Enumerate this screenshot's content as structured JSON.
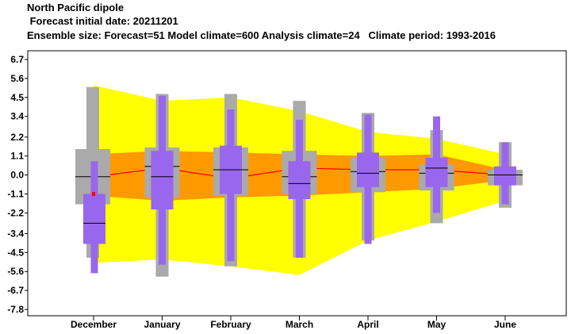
{
  "header": {
    "title": "North Pacific dipole",
    "forecast_date": " Forecast initial date: 20211201",
    "ensemble": "Ensemble size: Forecast=51 Model climate=600 Analysis climate=24   Climate period: 1993-2016"
  },
  "colors": {
    "climate_outer": "#ffff00",
    "climate_inner": "#ff9900",
    "climate_median": "#ff0000",
    "model_climate_box": "#aaaaaa",
    "forecast_box": "#9966ee",
    "median_line": "#000000",
    "analysis_marker": "#ff0000"
  },
  "chart_data": {
    "type": "box",
    "categories": [
      "December",
      "January",
      "February",
      "March",
      "April",
      "May",
      "June"
    ],
    "y_ticks": [
      "6.7",
      "5.6",
      "4.5",
      "3.4",
      "2.2",
      "1.1",
      "0.0",
      "-1.1",
      "-2.2",
      "-3.4",
      "-4.5",
      "-5.6",
      "-6.7",
      "-7.8"
    ],
    "ylim": [
      -7.8,
      6.7
    ],
    "analysis_climate": {
      "outer_upper": [
        5.2,
        4.3,
        4.5,
        3.7,
        2.5,
        2.1,
        1.2
      ],
      "outer_lower": [
        -5.1,
        -4.9,
        -5.3,
        -5.8,
        -3.8,
        -2.7,
        -1.5
      ],
      "inner_upper": [
        1.2,
        1.4,
        1.3,
        1.2,
        1.1,
        1.2,
        0.3
      ],
      "inner_lower": [
        -1.2,
        -1.5,
        -1.3,
        -1.2,
        -1.0,
        -0.8,
        -0.3
      ],
      "median": [
        -0.1,
        0.4,
        -0.2,
        0.4,
        0.3,
        0.3,
        0.0
      ]
    },
    "model_climate": {
      "whisker_low": [
        -4.8,
        -5.9,
        -5.3,
        -4.8,
        -3.8,
        -2.8,
        -1.9
      ],
      "box_low": [
        -1.7,
        -1.3,
        -1.2,
        -1.1,
        -1.0,
        -0.9,
        -0.6
      ],
      "median": [
        -0.1,
        0.5,
        0.3,
        -0.1,
        0.2,
        0.1,
        0.0
      ],
      "box_high": [
        1.5,
        1.6,
        1.6,
        1.4,
        1.0,
        0.6,
        0.3
      ],
      "whisker_high": [
        5.1,
        4.7,
        4.7,
        4.3,
        3.6,
        2.6,
        1.9
      ]
    },
    "forecast": {
      "whisker_low": [
        -5.7,
        -5.2,
        -5.0,
        -4.8,
        -4.0,
        -2.2,
        -1.7
      ],
      "box_low": [
        -4.0,
        -2.0,
        -1.1,
        -1.4,
        -0.7,
        -0.7,
        -0.6
      ],
      "median": [
        -2.8,
        -0.1,
        0.3,
        -0.5,
        0.1,
        0.4,
        0.0
      ],
      "box_high": [
        -1.1,
        1.4,
        1.7,
        0.8,
        1.3,
        1.0,
        0.5
      ],
      "whisker_high": [
        0.8,
        4.6,
        3.8,
        3.2,
        3.5,
        3.4,
        1.9
      ]
    },
    "analysis": {
      "category": "December",
      "value": -1.1
    }
  }
}
